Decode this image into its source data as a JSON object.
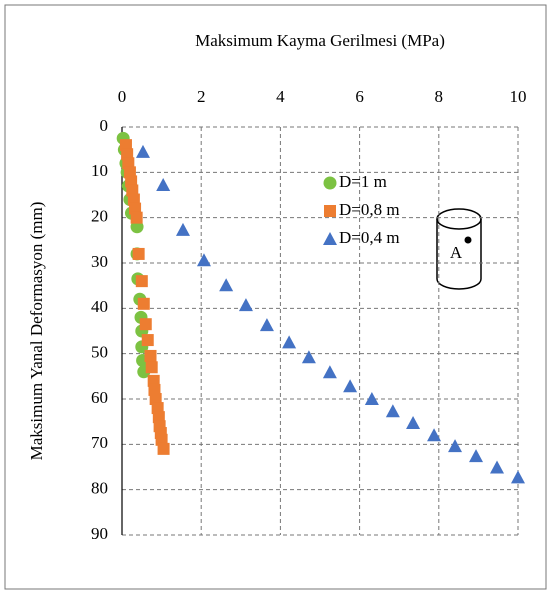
{
  "chart_data": {
    "type": "scatter",
    "title": "Maksimum Kayma Gerilmesi (MPa)",
    "y_label": "Maksimum Yanal Deformasyon (mm)",
    "xlim": [
      0,
      10
    ],
    "xticks": [
      0,
      2,
      4,
      6,
      8,
      10
    ],
    "ylim": [
      0,
      90
    ],
    "yticks": [
      0,
      10,
      20,
      30,
      40,
      50,
      60,
      70,
      80,
      90
    ],
    "y_inverted": true,
    "x_axis_position": "top",
    "grid": true,
    "legend_position": "center",
    "annotation": "A",
    "series": [
      {
        "name": "D=1 m",
        "color": "#7cc242",
        "marker": "circle",
        "x": [
          0.03,
          0.06,
          0.1,
          0.13,
          0.16,
          0.2,
          0.24,
          0.38,
          0.38,
          0.4,
          0.45,
          0.48,
          0.5,
          0.5,
          0.52,
          0.55
        ],
        "values": [
          2.5,
          5,
          8,
          10,
          13,
          16,
          19,
          22,
          28,
          33.5,
          38,
          42,
          45,
          48.5,
          51.5,
          54
        ]
      },
      {
        "name": "D=0,8 m",
        "color": "#ed7d31",
        "marker": "square",
        "x": [
          0.1,
          0.13,
          0.16,
          0.2,
          0.23,
          0.26,
          0.3,
          0.33,
          0.37,
          0.42,
          0.5,
          0.55,
          0.6,
          0.65,
          0.72,
          0.75,
          0.8,
          0.82,
          0.85,
          0.9,
          0.93,
          0.95,
          0.98,
          1.0,
          1.05
        ],
        "values": [
          4,
          6,
          8,
          10,
          12,
          14,
          16,
          18,
          20,
          28,
          34,
          39,
          43.5,
          47,
          50.5,
          53,
          56,
          58,
          60,
          62,
          64,
          66,
          67.5,
          69,
          71
        ]
      },
      {
        "name": "D=0,4 m",
        "color": "#4472c4",
        "marker": "triangle",
        "x": [
          0.53,
          1.04,
          1.54,
          2.07,
          2.63,
          3.13,
          3.66,
          4.22,
          4.72,
          5.25,
          5.76,
          6.31,
          6.84,
          7.35,
          7.88,
          8.41,
          8.94,
          9.47,
          10.0
        ],
        "values": [
          5.5,
          12.8,
          22.7,
          29.4,
          34.9,
          39.3,
          43.7,
          47.5,
          50.8,
          54.1,
          57.2,
          60.0,
          62.7,
          65.3,
          68.0,
          70.4,
          72.6,
          75.1,
          77.3
        ]
      }
    ]
  }
}
